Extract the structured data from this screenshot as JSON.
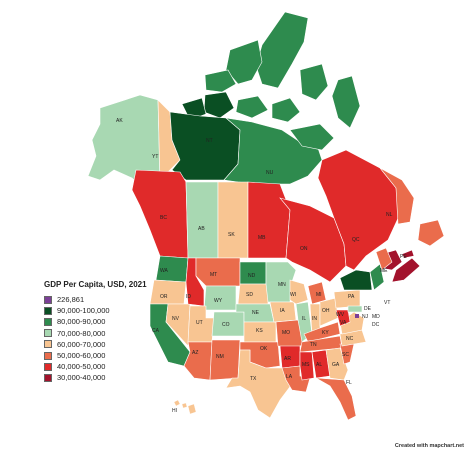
{
  "colors": {
    "c226": "#7b3f96",
    "c90": "#0a4f23",
    "c80": "#2e8b4e",
    "c70": "#a8d8b2",
    "c60": "#f8c592",
    "c50": "#ea6c4c",
    "c40": "#e02a2a",
    "c30": "#a3122c",
    "water": "#ffffff",
    "border": "#ffffff"
  },
  "legend": {
    "title": "GDP Per Capita, USD, 2021",
    "items": [
      {
        "label": "226,861",
        "color": "#7b3f96"
      },
      {
        "label": "90,000-100,000",
        "color": "#0a4f23"
      },
      {
        "label": "80,000-90,000",
        "color": "#2e8b4e"
      },
      {
        "label": "70,000-80,000",
        "color": "#a8d8b2"
      },
      {
        "label": "60,000-70,000",
        "color": "#f8c592"
      },
      {
        "label": "50,000-60,000",
        "color": "#ea6c4c"
      },
      {
        "label": "40,000-50,000",
        "color": "#e02a2a"
      },
      {
        "label": "30,000-40,000",
        "color": "#a3122c"
      }
    ]
  },
  "credit": "Created with mapchart.net",
  "regions": [
    {
      "code": "AK",
      "range": "70,000-80,000"
    },
    {
      "code": "YT",
      "range": "60,000-70,000"
    },
    {
      "code": "NT",
      "range": "90,000-100,000"
    },
    {
      "code": "NU",
      "range": "80,000-90,000"
    },
    {
      "code": "BC",
      "range": "40,000-50,000"
    },
    {
      "code": "AB",
      "range": "70,000-80,000"
    },
    {
      "code": "SK",
      "range": "60,000-70,000"
    },
    {
      "code": "MB",
      "range": "40,000-50,000"
    },
    {
      "code": "ON",
      "range": "40,000-50,000"
    },
    {
      "code": "QC",
      "range": "40,000-50,000"
    },
    {
      "code": "NL",
      "range": "50,000-60,000"
    },
    {
      "code": "PE",
      "range": "30,000-40,000"
    },
    {
      "code": "NS",
      "range": "30,000-40,000"
    },
    {
      "code": "NB",
      "range": "30,000-40,000"
    },
    {
      "code": "WA",
      "range": "80,000-90,000"
    },
    {
      "code": "OR",
      "range": "60,000-70,000"
    },
    {
      "code": "CA",
      "range": "80,000-90,000"
    },
    {
      "code": "NV",
      "range": "60,000-70,000"
    },
    {
      "code": "ID",
      "range": "40,000-50,000"
    },
    {
      "code": "MT",
      "range": "50,000-60,000"
    },
    {
      "code": "WY",
      "range": "70,000-80,000"
    },
    {
      "code": "UT",
      "range": "60,000-70,000"
    },
    {
      "code": "CO",
      "range": "70,000-80,000"
    },
    {
      "code": "AZ",
      "range": "50,000-60,000"
    },
    {
      "code": "NM",
      "range": "50,000-60,000"
    },
    {
      "code": "ND",
      "range": "80,000-90,000"
    },
    {
      "code": "SD",
      "range": "60,000-70,000"
    },
    {
      "code": "NE",
      "range": "70,000-80,000"
    },
    {
      "code": "KS",
      "range": "60,000-70,000"
    },
    {
      "code": "OK",
      "range": "50,000-60,000"
    },
    {
      "code": "TX",
      "range": "60,000-70,000"
    },
    {
      "code": "MN",
      "range": "70,000-80,000"
    },
    {
      "code": "IA",
      "range": "60,000-70,000"
    },
    {
      "code": "MO",
      "range": "50,000-60,000"
    },
    {
      "code": "AR",
      "range": "40,000-50,000"
    },
    {
      "code": "LA",
      "range": "50,000-60,000"
    },
    {
      "code": "WI",
      "range": "60,000-70,000"
    },
    {
      "code": "IL",
      "range": "70,000-80,000"
    },
    {
      "code": "MI",
      "range": "50,000-60,000"
    },
    {
      "code": "IN",
      "range": "60,000-70,000"
    },
    {
      "code": "OH",
      "range": "60,000-70,000"
    },
    {
      "code": "KY",
      "range": "50,000-60,000"
    },
    {
      "code": "TN",
      "range": "50,000-60,000"
    },
    {
      "code": "MS",
      "range": "40,000-50,000"
    },
    {
      "code": "AL",
      "range": "40,000-50,000"
    },
    {
      "code": "GA",
      "range": "60,000-70,000"
    },
    {
      "code": "FL",
      "range": "50,000-60,000"
    },
    {
      "code": "SC",
      "range": "50,000-60,000"
    },
    {
      "code": "NC",
      "range": "60,000-70,000"
    },
    {
      "code": "VA",
      "range": "60,000-70,000"
    },
    {
      "code": "WV",
      "range": "40,000-50,000"
    },
    {
      "code": "PA",
      "range": "60,000-70,000"
    },
    {
      "code": "NY",
      "range": "90,000-100,000"
    },
    {
      "code": "MD",
      "range": "70,000-80,000"
    },
    {
      "code": "DC",
      "range": "226,861"
    },
    {
      "code": "ME",
      "range": "50,000-60,000"
    },
    {
      "code": "HI",
      "range": "60,000-70,000"
    }
  ]
}
